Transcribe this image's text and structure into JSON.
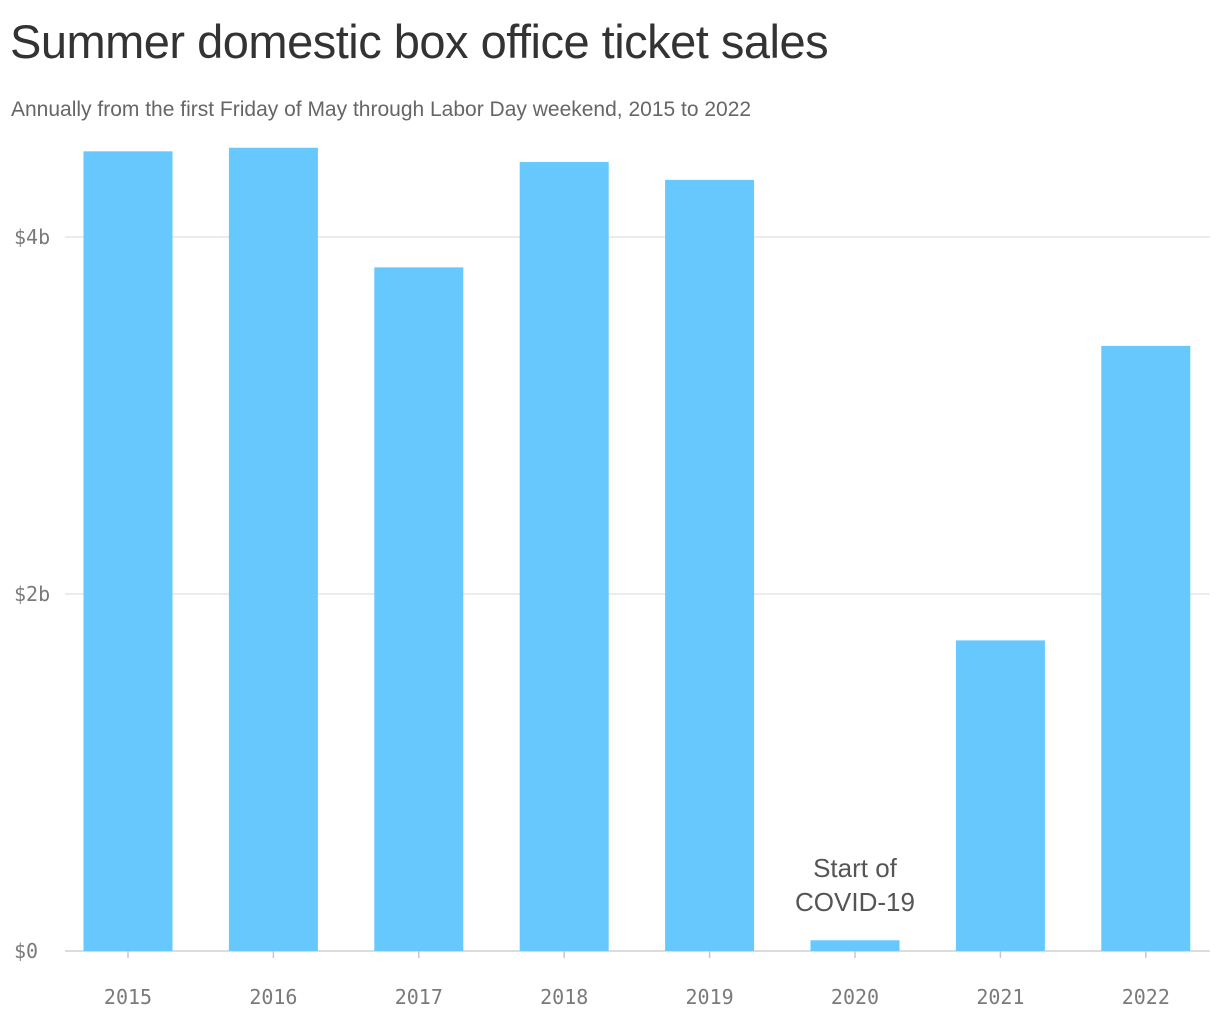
{
  "chart_data": {
    "type": "bar",
    "title": "Summer domestic box office ticket sales",
    "subtitle": "Annually from the first Friday of May through Labor Day weekend, 2015 to 2022",
    "categories": [
      "2015",
      "2016",
      "2017",
      "2018",
      "2019",
      "2020",
      "2021",
      "2022"
    ],
    "values": [
      4.48,
      4.5,
      3.83,
      4.42,
      4.32,
      0.06,
      1.74,
      3.39
    ],
    "unit": "billion USD",
    "ylim": [
      0,
      4.6
    ],
    "yticks": [
      {
        "value": 0,
        "label": "$0"
      },
      {
        "value": 2,
        "label": "$2b"
      },
      {
        "value": 4,
        "label": "$4b"
      }
    ],
    "bar_color": "#66c8fd",
    "gridline_color": "#e6e6e6",
    "grid": true,
    "annotation": {
      "category": "2020",
      "lines": [
        "Start of",
        "COVID-19"
      ]
    }
  }
}
